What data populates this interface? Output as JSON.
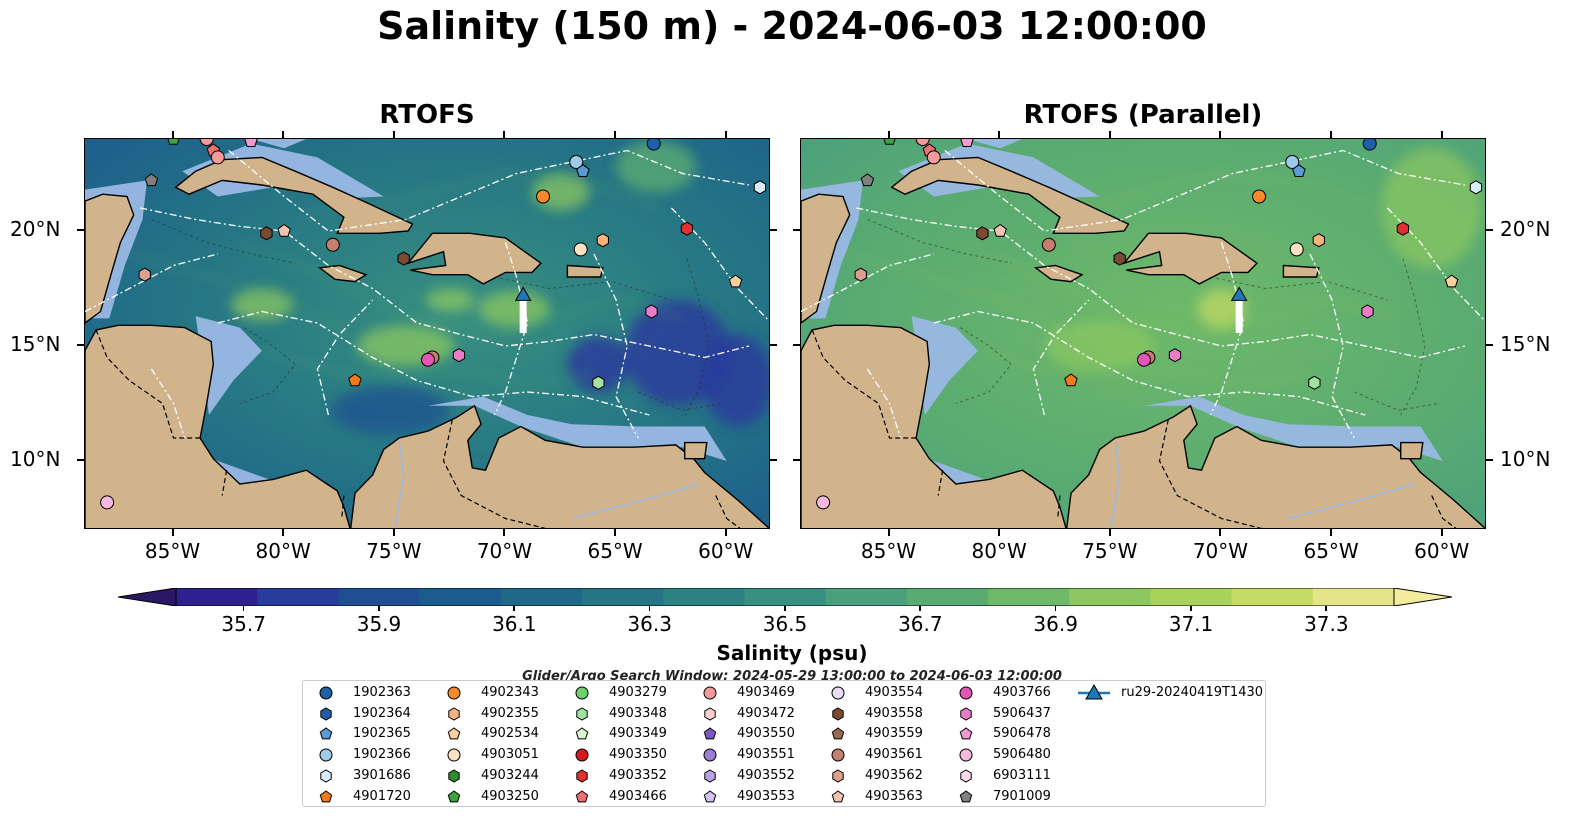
{
  "figure": {
    "title": "Salinity (150 m) - 2024-06-03 12:00:00",
    "colorbar_label": "Salinity (psu)",
    "search_window": "Glider/Argo Search Window: 2024-05-29 13:00:00 to 2024-06-03 12:00:00"
  },
  "chart_data": [
    {
      "type": "heatmap",
      "title": "RTOFS",
      "x_ticks": [
        "85°W",
        "80°W",
        "75°W",
        "70°W",
        "65°W",
        "60°W"
      ],
      "y_ticks": [
        "20°N",
        "15°N",
        "10°N"
      ],
      "lon_range": [
        -89,
        -58
      ],
      "lat_range": [
        7,
        24
      ],
      "colorbar": {
        "ticks": [
          "35.7",
          "35.9",
          "36.1",
          "36.3",
          "36.5",
          "36.7",
          "36.9",
          "37.1",
          "37.3"
        ],
        "range": [
          35.6,
          37.4
        ],
        "extend": "both"
      }
    },
    {
      "type": "heatmap",
      "title": "RTOFS (Parallel)",
      "x_ticks": [
        "85°W",
        "80°W",
        "75°W",
        "70°W",
        "65°W",
        "60°W"
      ],
      "y_ticks": [
        "20°N",
        "15°N",
        "10°N"
      ],
      "lon_range": [
        -89,
        -58
      ],
      "lat_range": [
        7,
        24
      ],
      "colorbar": {
        "ticks": [
          "35.7",
          "35.9",
          "36.1",
          "36.3",
          "36.5",
          "36.7",
          "36.9",
          "37.1",
          "37.3"
        ],
        "range": [
          35.6,
          37.4
        ],
        "extend": "both"
      }
    }
  ],
  "colors": {
    "land": "#d2b48c",
    "shelf": "#9ab8e4",
    "colormap": [
      "#2a1864",
      "#2f208f",
      "#283c9b",
      "#1f4f92",
      "#1c5b8d",
      "#1f6888",
      "#257585",
      "#2c8283",
      "#389080",
      "#4a9f7c",
      "#5aab72",
      "#6eb969",
      "#8cc75f",
      "#a9d25b",
      "#c6db63",
      "#e5e489",
      "#f3ec9c"
    ]
  },
  "legend": {
    "items": [
      {
        "label": "1902363",
        "shape": "circle",
        "color": "#1f5fa8"
      },
      {
        "label": "1902364",
        "shape": "hexagon",
        "color": "#1f5fa8"
      },
      {
        "label": "1902365",
        "shape": "pentagon",
        "color": "#5b9bd5"
      },
      {
        "label": "1902366",
        "shape": "circle",
        "color": "#9ecbe8"
      },
      {
        "label": "3901686",
        "shape": "hexagon",
        "color": "#d9ecf7"
      },
      {
        "label": "4901720",
        "shape": "pentagon",
        "color": "#f07b1a"
      },
      {
        "label": "4902343",
        "shape": "circle",
        "color": "#f5892e"
      },
      {
        "label": "4902355",
        "shape": "hexagon",
        "color": "#f8b27a"
      },
      {
        "label": "4902534",
        "shape": "pentagon",
        "color": "#fbcf9e"
      },
      {
        "label": "4903051",
        "shape": "circle",
        "color": "#fde3c3"
      },
      {
        "label": "4903244",
        "shape": "hexagon",
        "color": "#2e8b2e"
      },
      {
        "label": "4903250",
        "shape": "pentagon",
        "color": "#3fa33f"
      },
      {
        "label": "4903279",
        "shape": "circle",
        "color": "#6fcf6f"
      },
      {
        "label": "4903348",
        "shape": "hexagon",
        "color": "#a2e3a2"
      },
      {
        "label": "4903349",
        "shape": "pentagon",
        "color": "#d8f5d0"
      },
      {
        "label": "4903350",
        "shape": "circle",
        "color": "#d7191c"
      },
      {
        "label": "4903352",
        "shape": "hexagon",
        "color": "#e03030"
      },
      {
        "label": "4903466",
        "shape": "pentagon",
        "color": "#f07070"
      },
      {
        "label": "4903469",
        "shape": "circle",
        "color": "#f59a9a"
      },
      {
        "label": "4903472",
        "shape": "hexagon",
        "color": "#fcd0d0"
      },
      {
        "label": "4903550",
        "shape": "pentagon",
        "color": "#7e57c2"
      },
      {
        "label": "4903551",
        "shape": "circle",
        "color": "#9c7dd6"
      },
      {
        "label": "4903552",
        "shape": "hexagon",
        "color": "#b9a2e3"
      },
      {
        "label": "4903553",
        "shape": "pentagon",
        "color": "#d3c2f0"
      },
      {
        "label": "4903554",
        "shape": "circle",
        "color": "#e9dcf8"
      },
      {
        "label": "4903558",
        "shape": "hexagon",
        "color": "#7b4a32"
      },
      {
        "label": "4903559",
        "shape": "pentagon",
        "color": "#9c6a54"
      },
      {
        "label": "4903561",
        "shape": "circle",
        "color": "#c47f6e"
      },
      {
        "label": "4903562",
        "shape": "hexagon",
        "color": "#dca08f"
      },
      {
        "label": "4903563",
        "shape": "pentagon",
        "color": "#f3c3b0"
      },
      {
        "label": "4903766",
        "shape": "circle",
        "color": "#e256b8"
      },
      {
        "label": "5906437",
        "shape": "hexagon",
        "color": "#ea7cc8"
      },
      {
        "label": "5906478",
        "shape": "pentagon",
        "color": "#f09ad4"
      },
      {
        "label": "5906480",
        "shape": "circle",
        "color": "#f6b8df"
      },
      {
        "label": "6903111",
        "shape": "hexagon",
        "color": "#fbd9ec"
      },
      {
        "label": "7901009",
        "shape": "pentagon",
        "color": "#7f7f7f"
      },
      {
        "label": "ru29-20240419T1430",
        "shape": "triangle-line",
        "color": "#1f77b4"
      }
    ]
  },
  "markers": [
    {
      "id": "4903250",
      "lon": -85.0,
      "lat": 24.0
    },
    {
      "id": "4903469",
      "lon": -83.5,
      "lat": 24.0
    },
    {
      "id": "5906478",
      "lon": -81.5,
      "lat": 23.9
    },
    {
      "id": "4903466",
      "lon": -83.2,
      "lat": 23.5
    },
    {
      "id": "4903469",
      "lon": -83.0,
      "lat": 23.2
    },
    {
      "id": "7901009",
      "lon": -86.0,
      "lat": 22.2
    },
    {
      "id": "4903558",
      "lon": -80.8,
      "lat": 19.9
    },
    {
      "id": "4903563",
      "lon": -80.0,
      "lat": 20.0
    },
    {
      "id": "4903562",
      "lon": -86.3,
      "lat": 18.1
    },
    {
      "id": "4903561",
      "lon": -77.8,
      "lat": 19.4
    },
    {
      "id": "4903558",
      "lon": -74.6,
      "lat": 18.8
    },
    {
      "id": "1902363",
      "lon": -63.3,
      "lat": 23.8
    },
    {
      "id": "1902366",
      "lon": -66.8,
      "lat": 23.0
    },
    {
      "id": "1902365",
      "lon": -66.5,
      "lat": 22.6
    },
    {
      "id": "4902343",
      "lon": -68.3,
      "lat": 21.5
    },
    {
      "id": "3901686",
      "lon": -58.5,
      "lat": 21.9
    },
    {
      "id": "4903352",
      "lon": -61.8,
      "lat": 20.1
    },
    {
      "id": "4902355",
      "lon": -65.6,
      "lat": 19.6
    },
    {
      "id": "4903051",
      "lon": -66.6,
      "lat": 19.2
    },
    {
      "id": "4902534",
      "lon": -59.6,
      "lat": 17.8
    },
    {
      "id": "5906437",
      "lon": -63.4,
      "lat": 16.5
    },
    {
      "id": "4903561",
      "lon": -73.3,
      "lat": 14.5
    },
    {
      "id": "4903766",
      "lon": -73.5,
      "lat": 14.4
    },
    {
      "id": "5906437",
      "lon": -72.1,
      "lat": 14.6
    },
    {
      "id": "4901720",
      "lon": -76.8,
      "lat": 13.5
    },
    {
      "id": "4903348",
      "lon": -65.8,
      "lat": 13.4
    },
    {
      "id": "5906480",
      "lon": -88.0,
      "lat": 8.2
    }
  ],
  "glider": {
    "label": "ru29-20240419T1430",
    "lon": -69.2,
    "lat": 17.2,
    "track_lat_end": 16.0
  }
}
